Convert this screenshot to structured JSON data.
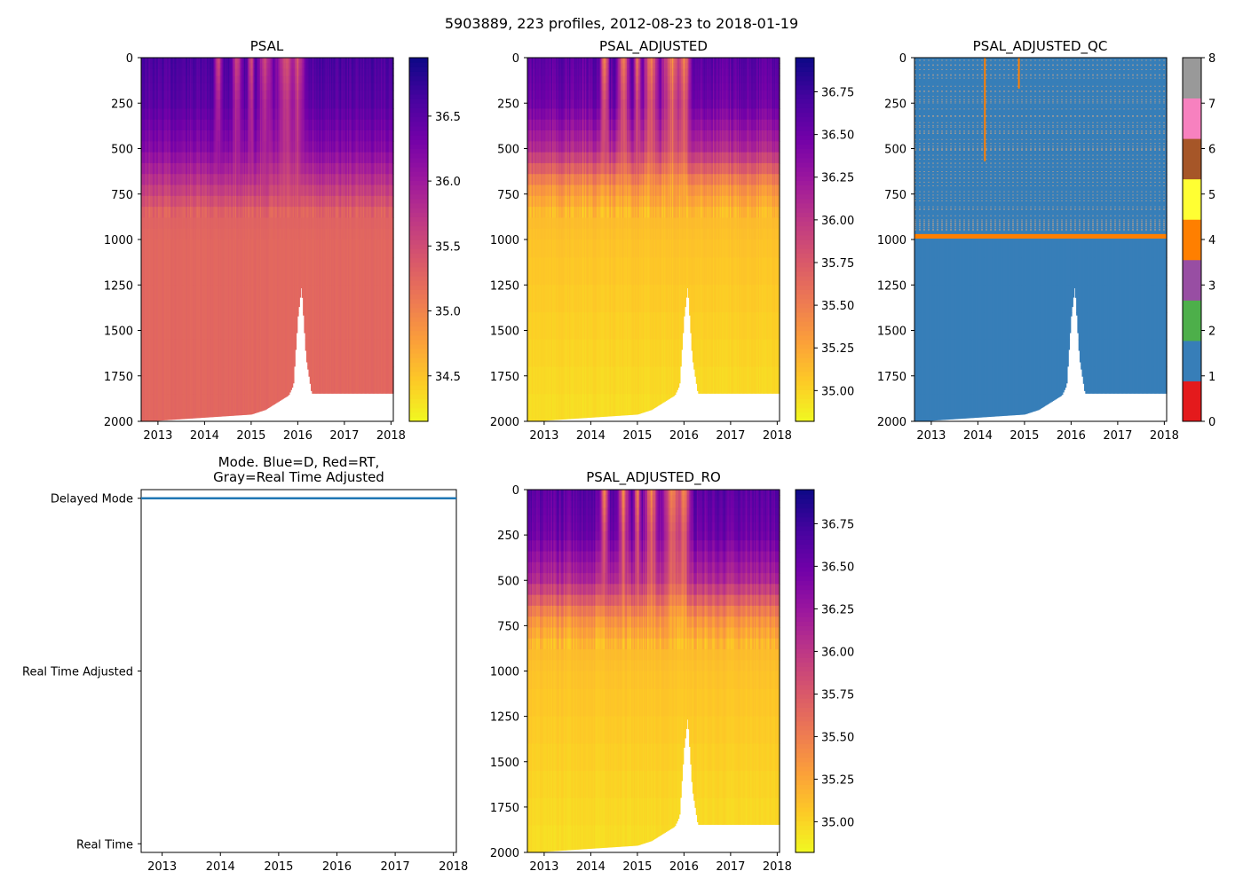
{
  "figure_title": "5903889, 223 profiles, 2012-08-23 to 2018-01-19",
  "colors": {
    "plasma_r": [
      "#f0f921",
      "#fdca26",
      "#fb9f3a",
      "#ed7953",
      "#d8576b",
      "#bd3786",
      "#9c179e",
      "#7201a8",
      "#46039f",
      "#0d0887"
    ],
    "qc_cmap": [
      "#e41a1c",
      "#377eb8",
      "#4daf4a",
      "#984ea3",
      "#ff7f00",
      "#ffff33",
      "#a65628",
      "#f781bf",
      "#999999"
    ],
    "mode_line": "#1f77b4"
  },
  "chart_data": [
    {
      "id": "psal",
      "type": "heatmap",
      "title": "PSAL",
      "xlabel": "",
      "ylabel": "",
      "xlim": [
        2012.64,
        2018.05
      ],
      "ylim": [
        2000,
        0
      ],
      "xticks": [
        2013,
        2014,
        2015,
        2016,
        2017,
        2018
      ],
      "yticks": [
        0,
        250,
        500,
        750,
        1000,
        1250,
        1500,
        1750,
        2000
      ],
      "colorbar": {
        "range": [
          34.15,
          36.95
        ],
        "ticks": [
          "34.5",
          "35.0",
          "35.5",
          "36.0",
          "36.5"
        ],
        "tick_values": [
          34.5,
          35.0,
          35.5,
          36.0,
          36.5
        ]
      },
      "profile": {
        "depths": [
          0,
          250,
          500,
          700,
          850,
          1000,
          2000
        ],
        "values": [
          36.6,
          36.5,
          36.2,
          35.7,
          35.3,
          35.25,
          35.25
        ]
      }
    },
    {
      "id": "psal_adjusted",
      "type": "heatmap",
      "title": "PSAL_ADJUSTED",
      "xlim": [
        2012.64,
        2018.05
      ],
      "ylim": [
        2000,
        0
      ],
      "xticks": [
        2013,
        2014,
        2015,
        2016,
        2017,
        2018
      ],
      "yticks": [
        0,
        250,
        500,
        750,
        1000,
        1250,
        1500,
        1750,
        2000
      ],
      "colorbar": {
        "range": [
          34.82,
          36.95
        ],
        "ticks": [
          "35.00",
          "35.25",
          "35.50",
          "35.75",
          "36.00",
          "36.25",
          "36.50",
          "36.75"
        ],
        "tick_values": [
          35.0,
          35.25,
          35.5,
          35.75,
          36.0,
          36.25,
          36.5,
          36.75
        ]
      },
      "profile": {
        "depths": [
          0,
          250,
          500,
          700,
          850,
          1000,
          2000
        ],
        "values": [
          36.6,
          36.5,
          36.1,
          35.4,
          35.15,
          35.1,
          34.95
        ]
      }
    },
    {
      "id": "psal_adjusted_qc",
      "type": "heatmap",
      "title": "PSAL_ADJUSTED_QC",
      "xlim": [
        2012.64,
        2018.05
      ],
      "ylim": [
        2000,
        0
      ],
      "xticks": [
        2013,
        2014,
        2015,
        2016,
        2017,
        2018
      ],
      "yticks": [
        0,
        250,
        500,
        750,
        1000,
        1250,
        1500,
        1750,
        2000
      ],
      "colorbar": {
        "range": [
          0,
          8
        ],
        "ticks": [
          "0",
          "1",
          "2",
          "3",
          "4",
          "5",
          "6",
          "7",
          "8"
        ],
        "tick_values": [
          0,
          1,
          2,
          3,
          4,
          5,
          6,
          7,
          8
        ]
      },
      "dominant_flag": 1,
      "flag4_band_depth": [
        970,
        995
      ],
      "flag4_vertical_lines": [
        {
          "x": 2014.15,
          "depth": [
            0,
            570
          ]
        },
        {
          "x": 2014.88,
          "depth": [
            0,
            170
          ]
        }
      ]
    },
    {
      "id": "mode",
      "type": "line",
      "title_lines": [
        "Mode. Blue=D, Red=RT,",
        "Gray=Real Time Adjusted"
      ],
      "xlim": [
        2012.64,
        2018.05
      ],
      "xticks": [
        2013,
        2014,
        2015,
        2016,
        2017,
        2018
      ],
      "ytick_labels": [
        "Delayed Mode",
        "Real Time Adjusted",
        "Real Time"
      ],
      "ytick_values": [
        2,
        1,
        0
      ],
      "ylim": [
        -0.05,
        2.05
      ],
      "series": [
        {
          "name": "Delayed Mode",
          "x": [
            2012.64,
            2018.05
          ],
          "y": [
            2,
            2
          ]
        }
      ]
    },
    {
      "id": "psal_adjusted_ro",
      "type": "heatmap",
      "title": "PSAL_ADJUSTED_RO",
      "xlim": [
        2012.64,
        2018.05
      ],
      "ylim": [
        2000,
        0
      ],
      "xticks": [
        2013,
        2014,
        2015,
        2016,
        2017,
        2018
      ],
      "yticks": [
        0,
        250,
        500,
        750,
        1000,
        1250,
        1500,
        1750,
        2000
      ],
      "colorbar": {
        "range": [
          34.82,
          36.95
        ],
        "ticks": [
          "35.00",
          "35.25",
          "35.50",
          "35.75",
          "36.00",
          "36.25",
          "36.50",
          "36.75"
        ],
        "tick_values": [
          35.0,
          35.25,
          35.5,
          35.75,
          36.0,
          36.25,
          36.5,
          36.75
        ]
      },
      "profile": {
        "depths": [
          0,
          250,
          500,
          700,
          850,
          1000,
          2000
        ],
        "values": [
          36.6,
          36.5,
          36.1,
          35.4,
          35.15,
          35.1,
          34.95
        ]
      }
    }
  ],
  "profile_bottoms": [
    {
      "x": 2012.64,
      "depth": 2000
    },
    {
      "x": 2015.0,
      "depth": 1960
    },
    {
      "x": 2015.3,
      "depth": 1935
    },
    {
      "x": 2015.55,
      "depth": 1895
    },
    {
      "x": 2015.8,
      "depth": 1855
    },
    {
      "x": 2015.9,
      "depth": 1800
    },
    {
      "x": 2016.0,
      "depth": 1420
    },
    {
      "x": 2016.08,
      "depth": 1250
    },
    {
      "x": 2016.18,
      "depth": 1650
    },
    {
      "x": 2016.3,
      "depth": 1845
    },
    {
      "x": 2018.05,
      "depth": 1845
    }
  ],
  "fresh_plumes": [
    {
      "x": 2014.3,
      "width": 0.12,
      "depth": 600
    },
    {
      "x": 2014.7,
      "width": 0.15,
      "depth": 700
    },
    {
      "x": 2015.0,
      "width": 0.1,
      "depth": 650
    },
    {
      "x": 2015.3,
      "width": 0.2,
      "depth": 750
    },
    {
      "x": 2015.75,
      "width": 0.3,
      "depth": 800
    },
    {
      "x": 2016.0,
      "width": 0.2,
      "depth": 600
    }
  ]
}
